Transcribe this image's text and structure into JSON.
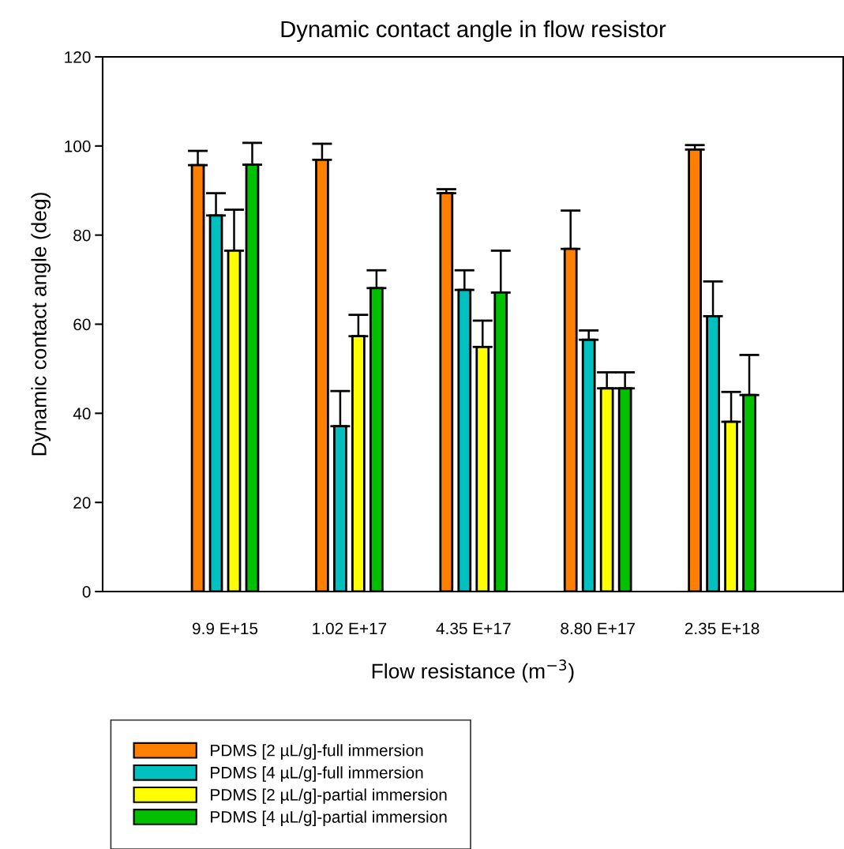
{
  "chart_data": {
    "type": "bar",
    "title": "Dynamic contact angle in flow resistor",
    "xlabel": "Flow resistance (m$^{−3}$)",
    "ylabel": "Dynamic contact angle (deg)",
    "categories": [
      "9.9 E+15",
      "1.02 E+17",
      "4.35 E+17",
      "8.80 E+17",
      "2.35 E+18"
    ],
    "series": [
      {
        "name": "PDMS [2 µL/g]-full immersion",
        "color": "#ff8000",
        "values": [
          95.7,
          96.9,
          89.4,
          76.9,
          99.2
        ],
        "errors": [
          [
            95.7,
            98.9
          ],
          [
            96.9,
            100.5
          ],
          [
            89.4,
            90.3
          ],
          [
            76.9,
            85.5
          ],
          [
            99.2,
            100.2
          ]
        ]
      },
      {
        "name": "PDMS [4 µL/g]-full immersion",
        "color": "#00c0c0",
        "values": [
          84.4,
          37.1,
          67.7,
          56.5,
          61.8
        ],
        "errors": [
          [
            84.4,
            89.4
          ],
          [
            37.1,
            45.0
          ],
          [
            67.7,
            72.1
          ],
          [
            56.5,
            58.6
          ],
          [
            61.8,
            69.6
          ]
        ]
      },
      {
        "name": "PDMS [2 µL/g]-partial immersion",
        "color": "#ffff00",
        "values": [
          76.5,
          57.3,
          54.9,
          45.6,
          38.1
        ],
        "errors": [
          [
            76.5,
            85.7
          ],
          [
            57.3,
            62.1
          ],
          [
            54.9,
            60.8
          ],
          [
            45.6,
            49.2
          ],
          [
            38.1,
            44.8
          ]
        ]
      },
      {
        "name": "PDMS [4 µL/g]-partial immersion",
        "color": "#00c000",
        "values": [
          95.8,
          68.1,
          67.1,
          45.6,
          44.1
        ],
        "errors": [
          [
            95.8,
            100.7
          ],
          [
            68.1,
            72.1
          ],
          [
            67.1,
            76.5
          ],
          [
            45.6,
            49.2
          ],
          [
            44.1,
            53.1
          ]
        ]
      }
    ],
    "ylim": [
      0,
      120
    ],
    "yticks": [
      0,
      20,
      40,
      60,
      80,
      100,
      120
    ],
    "grid": false,
    "legend": "bottom left"
  }
}
